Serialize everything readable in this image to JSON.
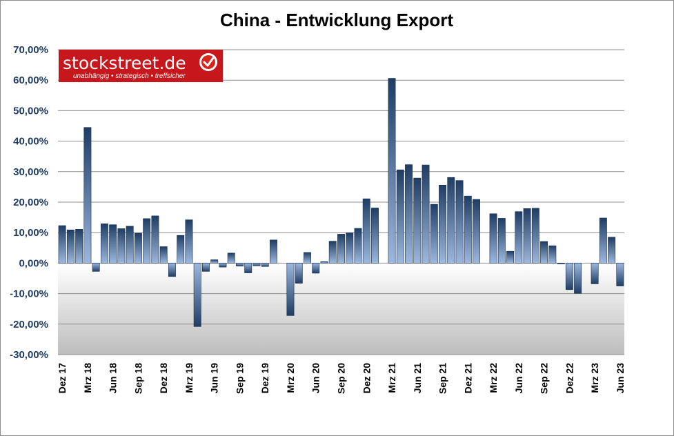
{
  "logo": {
    "main": "stockstreet.de",
    "tagline": "unabhängig • strategisch • treffsicher"
  },
  "colors": {
    "bar_dark": "#1f3d64",
    "bar_light": "#9db8de",
    "grid": "#8c8c8c",
    "logo_bg": "#c6171d",
    "axis_text": "#1f3d64"
  },
  "chart_data": {
    "type": "bar",
    "title": "China - Entwicklung Export",
    "xlabel": "",
    "ylabel": "",
    "ylim": [
      -30,
      70
    ],
    "yticks": [
      "70,00%",
      "60,00%",
      "50,00%",
      "40,00%",
      "30,00%",
      "20,00%",
      "10,00%",
      "0,00%",
      "-10,00%",
      "-20,00%",
      "-30,00%"
    ],
    "grid": true,
    "legend": "none",
    "categories": [
      "Dez 17",
      "Jan 18",
      "Feb 18",
      "Mrz 18",
      "Apr 18",
      "Mai 18",
      "Jun 18",
      "Jul 18",
      "Aug 18",
      "Sep 18",
      "Okt 18",
      "Nov 18",
      "Dez 18",
      "Jan 19",
      "Feb 19",
      "Mrz 19",
      "Apr 19",
      "Mai 19",
      "Jun 19",
      "Jul 19",
      "Aug 19",
      "Sep 19",
      "Okt 19",
      "Nov 19",
      "Dez 19",
      "Jan 20",
      "Feb 20",
      "Mrz 20",
      "Apr 20",
      "Mai 20",
      "Jun 20",
      "Jul 20",
      "Aug 20",
      "Sep 20",
      "Okt 20",
      "Nov 20",
      "Dez 20",
      "Jan 21",
      "Feb 21",
      "Mrz 21",
      "Apr 21",
      "Mai 21",
      "Jun 21",
      "Jul 21",
      "Aug 21",
      "Sep 21",
      "Okt 21",
      "Nov 21",
      "Dez 21",
      "Jan 22",
      "Feb 22",
      "Mrz 22",
      "Apr 22",
      "Mai 22",
      "Jun 22",
      "Jul 22",
      "Aug 22",
      "Sep 22",
      "Okt 22",
      "Nov 22",
      "Dez 22",
      "Jan 23",
      "Feb 23",
      "Mrz 23",
      "Apr 23",
      "Mai 23",
      "Jun 23"
    ],
    "x_tick_labels": [
      {
        "index": 0,
        "label": "Dez 17"
      },
      {
        "index": 3,
        "label": "Mrz 18"
      },
      {
        "index": 6,
        "label": "Jun 18"
      },
      {
        "index": 9,
        "label": "Sep 18"
      },
      {
        "index": 12,
        "label": "Dez 18"
      },
      {
        "index": 15,
        "label": "Mrz 19"
      },
      {
        "index": 18,
        "label": "Jun 19"
      },
      {
        "index": 21,
        "label": "Sep 19"
      },
      {
        "index": 24,
        "label": "Dez 19"
      },
      {
        "index": 27,
        "label": "Mrz 20"
      },
      {
        "index": 30,
        "label": "Jun 20"
      },
      {
        "index": 33,
        "label": "Sep 20"
      },
      {
        "index": 36,
        "label": "Dez 20"
      },
      {
        "index": 39,
        "label": "Mrz 21"
      },
      {
        "index": 42,
        "label": "Jun 21"
      },
      {
        "index": 45,
        "label": "Sep 21"
      },
      {
        "index": 48,
        "label": "Dez 21"
      },
      {
        "index": 51,
        "label": "Mrz 22"
      },
      {
        "index": 54,
        "label": "Jun 22"
      },
      {
        "index": 57,
        "label": "Sep 22"
      },
      {
        "index": 60,
        "label": "Dez 22"
      },
      {
        "index": 63,
        "label": "Mrz 23"
      },
      {
        "index": 66,
        "label": "Jun 23"
      }
    ],
    "values": [
      12.3,
      10.9,
      11.1,
      44.5,
      -2.7,
      12.9,
      12.6,
      11.3,
      12.1,
      9.8,
      14.6,
      15.5,
      5.4,
      -4.4,
      9.1,
      14.2,
      -20.8,
      -2.7,
      1.1,
      -1.3,
      3.3,
      -1.0,
      -3.2,
      -0.9,
      -1.1,
      7.6,
      null,
      -17.2,
      -6.6,
      3.5,
      -3.3,
      0.5,
      7.2,
      9.5,
      9.9,
      11.4,
      21.1,
      18.1,
      null,
      60.6,
      30.6,
      32.3,
      27.9,
      32.2,
      19.3,
      25.6,
      28.1,
      27.1,
      22.0,
      20.9,
      null,
      16.2,
      14.7,
      3.9,
      16.9,
      17.9,
      18.0,
      7.1,
      5.7,
      -0.3,
      -8.7,
      -9.9,
      null,
      -6.8,
      14.8,
      8.5,
      -7.5
    ]
  }
}
